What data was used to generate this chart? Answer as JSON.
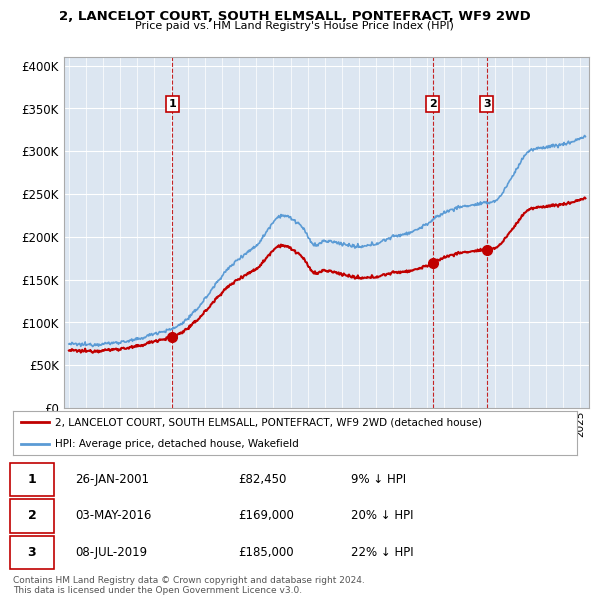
{
  "title": "2, LANCELOT COURT, SOUTH ELMSALL, PONTEFRACT, WF9 2WD",
  "subtitle": "Price paid vs. HM Land Registry's House Price Index (HPI)",
  "legend_line1": "2, LANCELOT COURT, SOUTH ELMSALL, PONTEFRACT, WF9 2WD (detached house)",
  "legend_line2": "HPI: Average price, detached house, Wakefield",
  "transactions": [
    {
      "label": "1",
      "date": "26-JAN-2001",
      "price": "£82,450",
      "pct": "9% ↓ HPI",
      "year": 2001.07
    },
    {
      "label": "2",
      "date": "03-MAY-2016",
      "price": "£169,000",
      "pct": "20% ↓ HPI",
      "year": 2016.34
    },
    {
      "label": "3",
      "date": "08-JUL-2019",
      "price": "£185,000",
      "pct": "22% ↓ HPI",
      "year": 2019.52
    }
  ],
  "sale_prices": [
    82450,
    169000,
    185000
  ],
  "sale_years": [
    2001.07,
    2016.34,
    2019.52
  ],
  "hpi_color": "#5b9bd5",
  "price_color": "#c00000",
  "transaction_marker_color": "#c00000",
  "vline_color": "#c00000",
  "label_box_color": "#c00000",
  "chart_bg_color": "#dce6f1",
  "ylim": [
    0,
    410000
  ],
  "yticks": [
    0,
    50000,
    100000,
    150000,
    200000,
    250000,
    300000,
    350000,
    400000
  ],
  "xlim_start": 1994.7,
  "xlim_end": 2025.5,
  "footer": "Contains HM Land Registry data © Crown copyright and database right 2024.\nThis data is licensed under the Open Government Licence v3.0.",
  "background_color": "#ffffff",
  "hpi_anchors_years": [
    1995.0,
    1996.0,
    1997.0,
    1998.0,
    1999.0,
    2000.0,
    2001.0,
    2002.0,
    2003.0,
    2004.0,
    2005.0,
    2006.0,
    2007.5,
    2008.5,
    2009.5,
    2010.0,
    2011.0,
    2012.0,
    2013.0,
    2014.0,
    2015.0,
    2016.0,
    2017.0,
    2018.0,
    2019.0,
    2020.0,
    2021.0,
    2022.0,
    2023.0,
    2024.0,
    2025.0
  ],
  "hpi_anchors_vals": [
    75000,
    74000,
    75000,
    77000,
    80000,
    87000,
    92000,
    105000,
    128000,
    155000,
    175000,
    190000,
    225000,
    215000,
    190000,
    195000,
    192000,
    188000,
    192000,
    200000,
    205000,
    215000,
    228000,
    235000,
    238000,
    242000,
    270000,
    300000,
    305000,
    308000,
    315000
  ]
}
